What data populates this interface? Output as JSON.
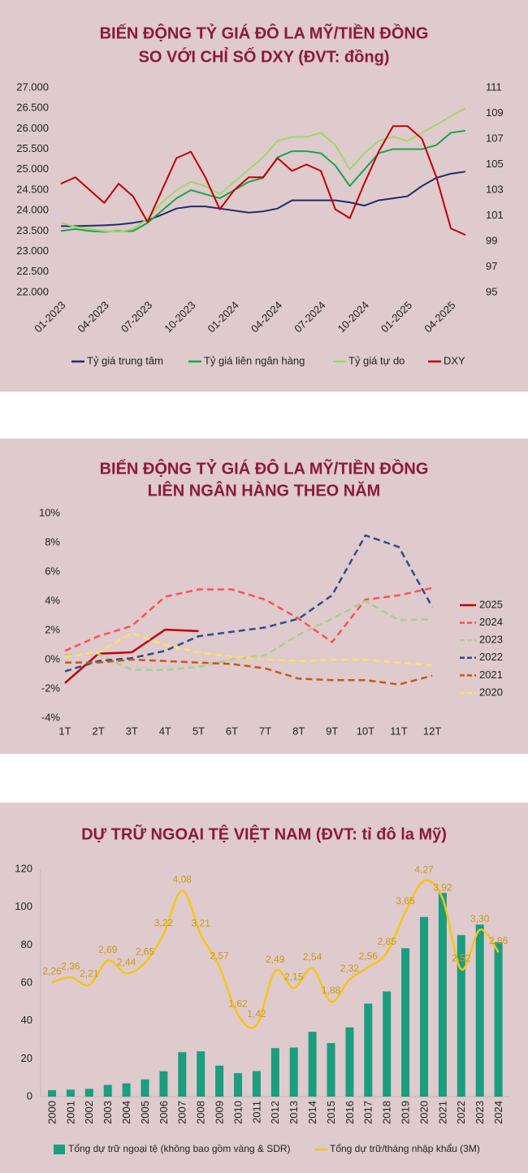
{
  "chart_data": [
    {
      "type": "line",
      "title": [
        "BIẾN ĐỘNG TỶ GIÁ ĐÔ LA MỸ/TIỀN ĐỒNG",
        "SO VỚI CHỈ SỐ DXY (ĐVT: đồng)"
      ],
      "categories": [
        "01-2023",
        null,
        null,
        "04-2023",
        null,
        null,
        "07-2023",
        null,
        null,
        "10-2023",
        null,
        null,
        "01-2024",
        null,
        null,
        "04-2024",
        null,
        null,
        "07-2024",
        null,
        null,
        "10-2024",
        null,
        null,
        "01-2025",
        null,
        null,
        "04-2025",
        null
      ],
      "ylim": [
        22000,
        27000
      ],
      "yticks": [
        {
          "value": 22000,
          "label": "22.000"
        },
        {
          "value": 22500,
          "label": "22.500"
        },
        {
          "value": 23000,
          "label": "23.000"
        },
        {
          "value": 23500,
          "label": "23.500"
        },
        {
          "value": 24000,
          "label": "24.000"
        },
        {
          "value": 24500,
          "label": "24.500"
        },
        {
          "value": 25000,
          "label": "25.000"
        },
        {
          "value": 25500,
          "label": "25.500"
        },
        {
          "value": 26000,
          "label": "26.000"
        },
        {
          "value": 26500,
          "label": "26.500"
        },
        {
          "value": 27000,
          "label": "27.000"
        }
      ],
      "y2lim": [
        95,
        111
      ],
      "y2ticks": [
        95,
        97,
        99,
        101,
        103,
        105,
        107,
        109,
        111
      ],
      "legend": "bottom",
      "series": [
        {
          "name": "Tỷ giá trung tâm",
          "color": "#1f2d6b",
          "values": [
            23620,
            23620,
            23630,
            23640,
            23660,
            23700,
            23760,
            23900,
            24050,
            24100,
            24100,
            24050,
            24000,
            23950,
            23980,
            24050,
            24250,
            24250,
            24250,
            24250,
            24200,
            24120,
            24250,
            24300,
            24350,
            24600,
            24800,
            24900,
            24950
          ]
        },
        {
          "name": "Tỷ giá liên ngân hàng",
          "color": "#1aa64a",
          "values": [
            23500,
            23550,
            23500,
            23480,
            23500,
            23500,
            23700,
            24000,
            24300,
            24500,
            24400,
            24300,
            24500,
            24700,
            24800,
            25300,
            25450,
            25450,
            25400,
            25100,
            24600,
            25000,
            25400,
            25500,
            25500,
            25500,
            25600,
            25900,
            25950
          ]
        },
        {
          "name": "Tỷ giá tự do",
          "color": "#9fd86a",
          "values": [
            23700,
            23600,
            23550,
            23500,
            23480,
            23550,
            23800,
            24200,
            24500,
            24700,
            24600,
            24400,
            24700,
            25000,
            25300,
            25700,
            25800,
            25800,
            25900,
            25600,
            25000,
            25400,
            25700,
            25800,
            25700,
            25900,
            26100,
            26300,
            26500
          ]
        },
        {
          "name": "DXY",
          "color": "#c00000",
          "axis": "y2",
          "values": [
            103.5,
            104,
            103,
            102,
            103.5,
            102.5,
            100.5,
            103,
            105.5,
            106,
            104,
            101.5,
            103,
            104,
            104,
            105.5,
            104.5,
            105,
            104.5,
            101.5,
            100.8,
            103.5,
            106,
            108,
            108,
            107,
            104,
            100,
            99.5
          ]
        }
      ]
    },
    {
      "type": "line",
      "title": [
        "BIẾN ĐỘNG TỶ GIÁ ĐÔ LA MỸ/TIỀN ĐỒNG",
        "LIÊN NGÂN HÀNG THEO NĂM"
      ],
      "categories": [
        "1T",
        "2T",
        "3T",
        "4T",
        "5T",
        "6T",
        "7T",
        "8T",
        "9T",
        "10T",
        "11T",
        "12T"
      ],
      "ylim": [
        -4,
        10
      ],
      "yticks": [
        {
          "value": -4,
          "label": "-4%"
        },
        {
          "value": -2,
          "label": "-2%"
        },
        {
          "value": 0,
          "label": "0%"
        },
        {
          "value": 2,
          "label": "2%"
        },
        {
          "value": 4,
          "label": "4%"
        },
        {
          "value": 6,
          "label": "6%"
        },
        {
          "value": 8,
          "label": "8%"
        },
        {
          "value": 10,
          "label": "10%"
        }
      ],
      "legend": "right",
      "series": [
        {
          "name": "2025",
          "color": "#c00000",
          "line_style": "solid",
          "values": [
            -1.6,
            0.4,
            0.5,
            2.05,
            1.95,
            null,
            null,
            null,
            null,
            null,
            null,
            null
          ]
        },
        {
          "name": "2024",
          "color": "#ff5050",
          "line_style": "dashed",
          "values": [
            0.6,
            1.6,
            2.3,
            4.3,
            4.8,
            4.8,
            4.1,
            2.8,
            1.2,
            4.1,
            4.4,
            4.9
          ]
        },
        {
          "name": "2023",
          "color": "#a9d18e",
          "line_style": "dashed",
          "values": [
            0.3,
            0.4,
            -0.7,
            -0.7,
            -0.5,
            0.0,
            0.3,
            1.7,
            2.8,
            4.0,
            2.7,
            2.75
          ]
        },
        {
          "name": "2022",
          "color": "#2f4c8f",
          "line_style": "dashed",
          "values": [
            -0.8,
            -0.1,
            0.1,
            0.6,
            1.6,
            1.9,
            2.2,
            2.8,
            4.4,
            8.5,
            7.7,
            3.6
          ]
        },
        {
          "name": "2021",
          "color": "#c55a11",
          "line_style": "dashed",
          "values": [
            -0.2,
            -0.2,
            0.0,
            -0.1,
            -0.2,
            -0.3,
            -0.6,
            -1.3,
            -1.4,
            -1.4,
            -1.7,
            -1.1
          ]
        },
        {
          "name": "2020",
          "color": "#ffe066",
          "line_style": "dashed",
          "values": [
            0.2,
            0.5,
            1.8,
            1.0,
            0.5,
            0.2,
            0.0,
            -0.1,
            0.0,
            0.0,
            -0.2,
            -0.4
          ]
        }
      ]
    },
    {
      "type": "combo",
      "title": [
        "DỰ TRỮ NGOẠI TỆ VIỆT NAM (ĐVT: tỉ đô la Mỹ)"
      ],
      "categories": [
        "2000",
        "2001",
        "2002",
        "2003",
        "2004",
        "2005",
        "2006",
        "2007",
        "2008",
        "2009",
        "2010",
        "2011",
        "2012",
        "2013",
        "2014",
        "2015",
        "2016",
        "2017",
        "2018",
        "2019",
        "2020",
        "2021",
        "2022",
        "2023",
        "2024"
      ],
      "ylim": [
        0,
        120
      ],
      "yticks": [
        0,
        20,
        40,
        60,
        80,
        100,
        120
      ],
      "y2lim": [
        0,
        4.5
      ],
      "legend": "bottom",
      "series": [
        {
          "name": "Tổng dự trữ ngoại tệ (không bao gồm vàng & SDR)",
          "type": "bar",
          "color": "#1a9e7e",
          "values": [
            3.4,
            3.7,
            4.1,
            6.2,
            7.0,
            9.1,
            13.4,
            23.5,
            23.9,
            16.4,
            12.4,
            13.5,
            25.6,
            25.9,
            34.2,
            28.3,
            36.5,
            49.1,
            55.5,
            78.3,
            94.8,
            107.5,
            85.2,
            90.8,
            81.5
          ]
        },
        {
          "name": "Tổng dự trữ/tháng nhập khẩu (3M)",
          "type": "line",
          "smooth": true,
          "axis": "y2",
          "color": "#f5c518",
          "values": [
            2.26,
            2.36,
            2.21,
            2.69,
            2.44,
            2.65,
            3.22,
            4.08,
            3.21,
            2.57,
            1.62,
            1.42,
            2.49,
            2.15,
            2.54,
            1.88,
            2.32,
            2.56,
            2.85,
            3.65,
            4.27,
            3.92,
            2.52,
            3.3,
            2.86
          ],
          "value_labels": [
            "2,26",
            "2,36",
            "2,21",
            "2,69",
            "2,44",
            "2,65",
            "3,22",
            "4,08",
            "3,21",
            "2,57",
            "1,62",
            "1,42",
            "2,49",
            "2,15",
            "2,54",
            "1,88",
            "2,32",
            "2,56",
            "2,85",
            "3,65",
            "4,27",
            "3,92",
            "2,52",
            "3,30",
            "2,86"
          ]
        }
      ]
    }
  ]
}
